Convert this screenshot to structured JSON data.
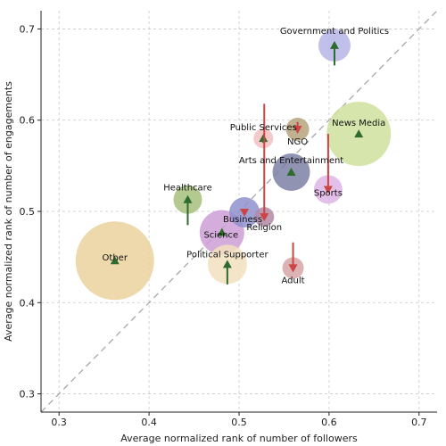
{
  "chart_data": {
    "type": "scatter",
    "title": "",
    "xlabel": "Average normalized rank of number of followers",
    "ylabel": "Average normalized rank of number of engagements",
    "xlim": [
      0.28,
      0.72
    ],
    "ylim": [
      0.28,
      0.72
    ],
    "xticks": [
      0.3,
      0.4,
      0.5,
      0.6,
      0.7
    ],
    "yticks": [
      0.3,
      0.4,
      0.5,
      0.6,
      0.7
    ],
    "xtick_labels": [
      "0.3",
      "0.4",
      "0.5",
      "0.6",
      "0.7"
    ],
    "ytick_labels": [
      "0.3",
      "0.4",
      "0.5",
      "0.6",
      "0.7"
    ],
    "grid": true,
    "diagonal_reference": true,
    "arrow_colors": {
      "up": "#2e6b2e",
      "down": "#cc4444"
    },
    "points": [
      {
        "label": "Government and Politics",
        "x": 0.606,
        "y": 0.682,
        "r": 18,
        "color": "#b6b5e6",
        "arrow_to": 0.66,
        "dir": "up"
      },
      {
        "label": "News Media",
        "x": 0.633,
        "y": 0.585,
        "r": 36,
        "color": "#cfe09c",
        "arrow_to": 0.585,
        "dir": "up"
      },
      {
        "label": "NGO",
        "x": 0.565,
        "y": 0.59,
        "r": 13,
        "color": "#b5a37c",
        "arrow_to": 0.598,
        "dir": "down"
      },
      {
        "label": "Public Services",
        "x": 0.527,
        "y": 0.58,
        "r": 11,
        "color": "#f2c0c0",
        "arrow_to": 0.575,
        "dir": "up"
      },
      {
        "label": "Arts and Entertainment",
        "x": 0.558,
        "y": 0.543,
        "r": 21,
        "color": "#7e80a6",
        "arrow_to": 0.543,
        "dir": "up"
      },
      {
        "label": "Sports",
        "x": 0.599,
        "y": 0.524,
        "r": 16,
        "color": "#ddb5e6",
        "arrow_to": 0.585,
        "dir": "down"
      },
      {
        "label": "Healthcare",
        "x": 0.443,
        "y": 0.513,
        "r": 16,
        "color": "#a7bf7c",
        "arrow_to": 0.485,
        "dir": "up"
      },
      {
        "label": "Business",
        "x": 0.506,
        "y": 0.499,
        "r": 17,
        "color": "#8f91cc",
        "arrow_to": 0.499,
        "dir": "down"
      },
      {
        "label": "Religion",
        "x": 0.528,
        "y": 0.494,
        "r": 11,
        "color": "#b089a6",
        "arrow_to": 0.618,
        "dir": "down"
      },
      {
        "label": "Science",
        "x": 0.481,
        "y": 0.477,
        "r": 25,
        "color": "#cc9fd6",
        "arrow_to": 0.477,
        "dir": "up"
      },
      {
        "label": "Other",
        "x": 0.362,
        "y": 0.446,
        "r": 44,
        "color": "#ebd29d",
        "arrow_to": 0.446,
        "dir": "up"
      },
      {
        "label": "Political Supporter",
        "x": 0.487,
        "y": 0.442,
        "r": 22,
        "color": "#f2e0be",
        "arrow_to": 0.42,
        "dir": "up"
      },
      {
        "label": "Adult",
        "x": 0.56,
        "y": 0.438,
        "r": 12,
        "color": "#d6a5a5",
        "arrow_to": 0.466,
        "dir": "down"
      }
    ]
  }
}
